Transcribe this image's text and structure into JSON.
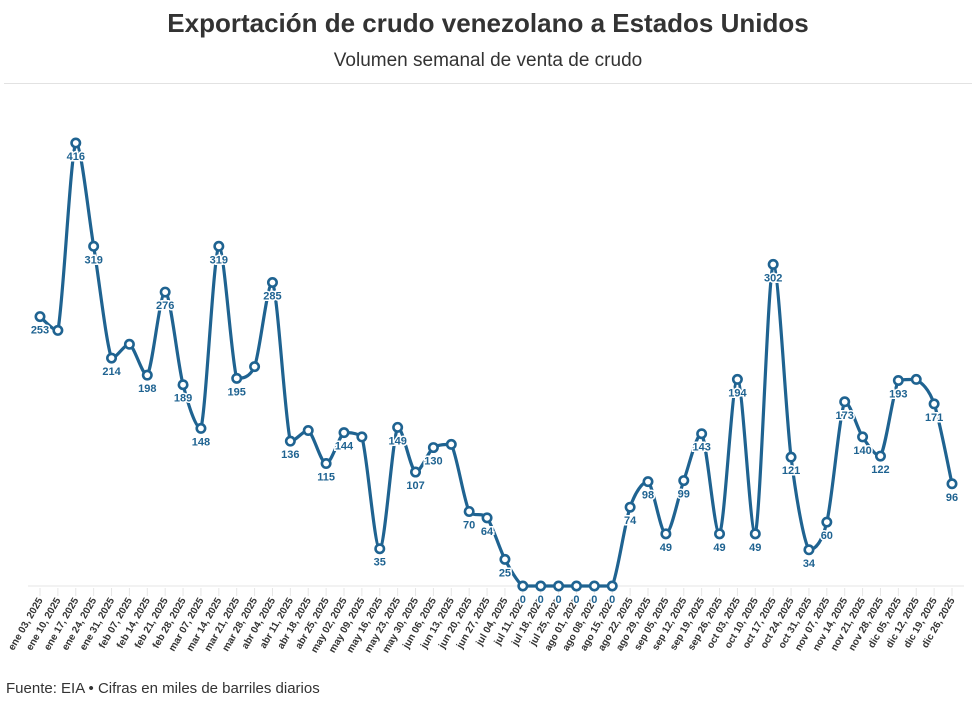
{
  "chart_data": {
    "type": "line",
    "title": "Exportación de crudo venezolano a Estados Unidos",
    "subtitle": "Volumen semanal de venta de crudo",
    "categories": [
      "ene 03, 2025",
      "ene 10, 2025",
      "ene 17, 2025",
      "ene 24, 2025",
      "ene 31, 2025",
      "feb 07, 2025",
      "feb 14, 2025",
      "feb 21, 2025",
      "feb 28, 2025",
      "mar 07, 2025",
      "mar 14, 2025",
      "mar 21, 2025",
      "mar 28, 2025",
      "abr 04, 2025",
      "abr 11, 2025",
      "abr 18, 2025",
      "abr 25, 2025",
      "may 02, 2025",
      "may 09, 2025",
      "may 16, 2025",
      "may 23, 2025",
      "may 30, 2025",
      "jun 06, 2025",
      "jun 13, 2025",
      "jun 20, 2025",
      "jun 27, 2025",
      "jul 04, 2025",
      "jul 11, 2025",
      "jul 18, 2025",
      "jul 25, 2025",
      "ago 01, 2025",
      "ago 08, 2025",
      "ago 15, 2025",
      "ago 22, 2025",
      "ago 29, 2025",
      "sep 05, 2025",
      "sep 12, 2025",
      "sep 19, 2025",
      "sep 26, 2025",
      "oct 03, 2025",
      "oct 10, 2025",
      "oct 17, 2025",
      "oct 24, 2025",
      "oct 31, 2025",
      "nov 07, 2025",
      "nov 14, 2025",
      "nov 21, 2025",
      "nov 28, 2025",
      "dic 05, 2025",
      "dic 12, 2025",
      "dic 19, 2025",
      "dic 26, 2025"
    ],
    "values": [
      253,
      240,
      416,
      319,
      214,
      227,
      198,
      276,
      189,
      148,
      319,
      195,
      206,
      285,
      136,
      146,
      115,
      144,
      140,
      35,
      149,
      107,
      130,
      133,
      70,
      64,
      25,
      0,
      0,
      0,
      0,
      0,
      0,
      74,
      98,
      49,
      99,
      143,
      49,
      194,
      49,
      302,
      121,
      34,
      60,
      173,
      140,
      122,
      193,
      194,
      171,
      96
    ],
    "data_labels": [
      "253",
      null,
      "416",
      "319",
      "214",
      null,
      "198",
      "276",
      "189",
      "148",
      "319",
      "195",
      null,
      "285",
      "136",
      null,
      "115",
      "144",
      null,
      "35",
      "149",
      "107",
      "130",
      null,
      "70",
      "64",
      "25",
      "0",
      "0",
      "0",
      "0",
      "0",
      "0",
      "74",
      "98",
      "49",
      "99",
      "143",
      "49",
      "194",
      "49",
      "302",
      "121",
      "34",
      "60",
      "173",
      "140",
      "122",
      "193",
      null,
      "171",
      "96"
    ],
    "ylim": [
      0,
      416
    ],
    "grid": false,
    "color": "#1f6391"
  },
  "footer": "Fuente: EIA • Cifras en miles de barriles diarios"
}
